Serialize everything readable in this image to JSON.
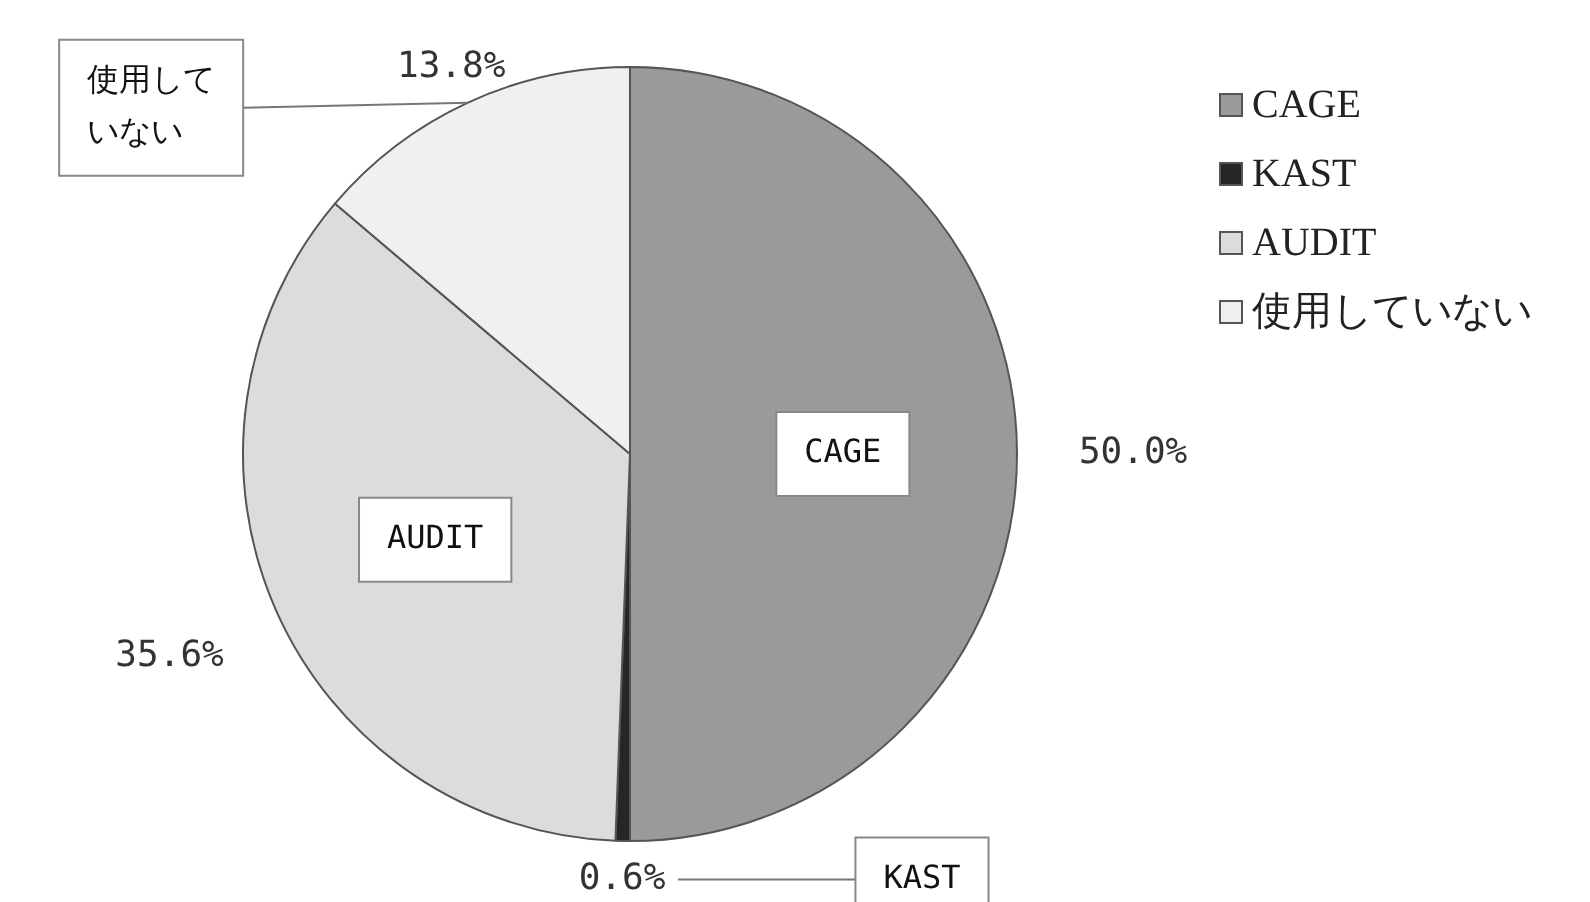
{
  "chart_data": {
    "type": "pie",
    "categories": [
      "CAGE",
      "KAST",
      "AUDIT",
      "使用していない"
    ],
    "values": [
      50.0,
      0.6,
      35.6,
      13.8
    ],
    "value_labels": [
      "50.0%",
      "0.6%",
      "35.6%",
      "13.8%"
    ],
    "colors": [
      "#9a9a9a",
      "#262626",
      "#dcdcdc",
      "#f0f0f0"
    ],
    "legend": "top right"
  }
}
